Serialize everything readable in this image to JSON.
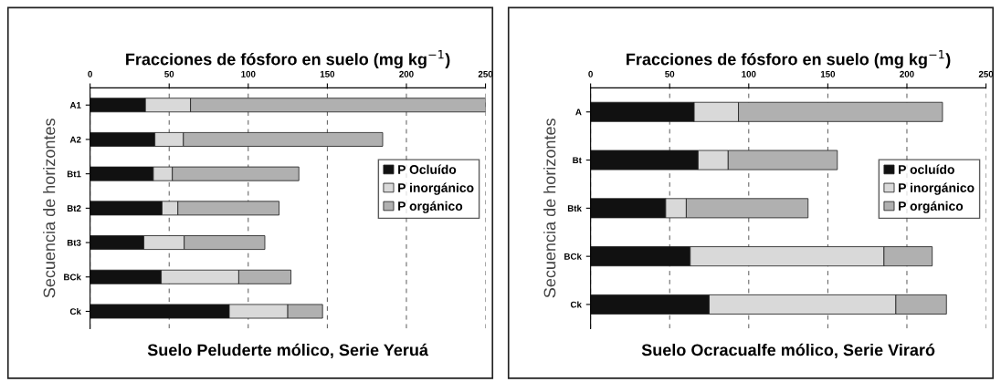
{
  "chart_data": [
    {
      "type": "bar",
      "orientation": "horizontal",
      "stacked": true,
      "title": "Fracciones de fósforo en suelo (mg kg$^{−1}$)",
      "xlabel": "Suelo Peluderte mólico, Serie Yeruá",
      "ylabel": "Secuencia de horizontes",
      "categories": [
        "A1",
        "A2",
        "Bt1",
        "Bt2",
        "Bt3",
        "BCk",
        "Ck"
      ],
      "series": [
        {
          "name": "P Ocluído",
          "color": "#111111",
          "values": [
            35,
            41,
            40,
            45.5,
            34,
            45,
            88
          ]
        },
        {
          "name": "P inorgánico",
          "color": "#d9d9d9",
          "values": [
            28.5,
            18,
            12,
            10,
            25.5,
            49,
            37
          ]
        },
        {
          "name": "P orgánico",
          "color": "#b0b0b0",
          "values": [
            186.5,
            126,
            80,
            64,
            51,
            33,
            22
          ]
        }
      ],
      "xlim": [
        0,
        250
      ],
      "xticks": [
        0,
        50,
        100,
        150,
        200,
        250
      ],
      "grid": "x",
      "legend": "right"
    },
    {
      "type": "bar",
      "orientation": "horizontal",
      "stacked": true,
      "title": "Fracciones de fósforo en suelo (mg kg$^{−1}$)",
      "xlabel": "Suelo Ocracualfe mólico, Serie Viraró",
      "ylabel": "Secuencia de horizontes",
      "categories": [
        "A",
        "Bt",
        "Btk",
        "BCk",
        "Ck"
      ],
      "series": [
        {
          "name": "P ocluído",
          "color": "#111111",
          "values": [
            65.5,
            68,
            47.5,
            63,
            75
          ]
        },
        {
          "name": "P inorgánico",
          "color": "#d9d9d9",
          "values": [
            28,
            19,
            13,
            122.5,
            118
          ]
        },
        {
          "name": "P orgánico",
          "color": "#b0b0b0",
          "values": [
            129,
            69,
            77,
            30.5,
            32
          ]
        }
      ],
      "xlim": [
        0,
        250
      ],
      "xticks": [
        0,
        50,
        100,
        150,
        200,
        250
      ],
      "grid": "x",
      "legend": "right"
    }
  ]
}
